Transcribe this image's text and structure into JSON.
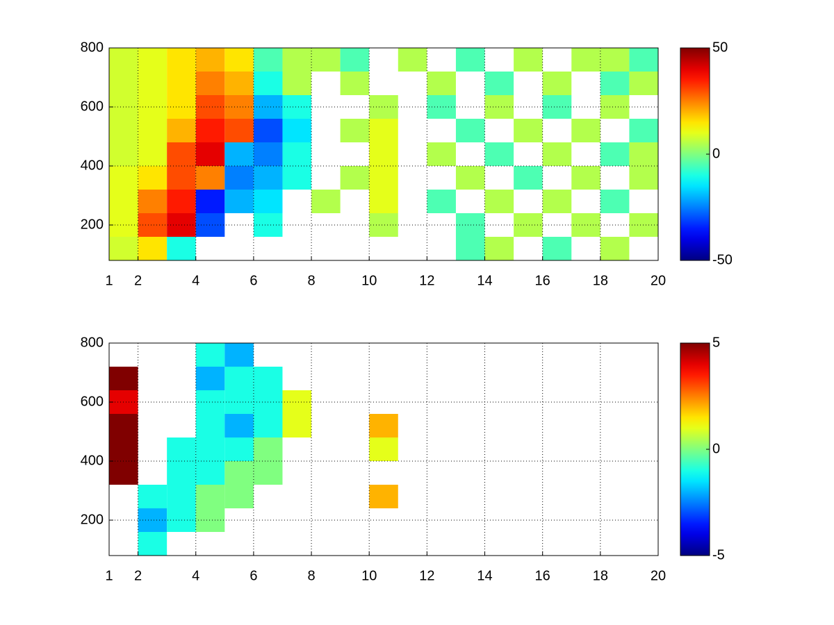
{
  "chart_data": [
    {
      "type": "heatmap",
      "colormap": "jet",
      "grid": true,
      "xbins": [
        1,
        2,
        3,
        4,
        5,
        6,
        7,
        8,
        9,
        10,
        11,
        12,
        13,
        14,
        15,
        16,
        17,
        18,
        19,
        20
      ],
      "ybins": [
        80,
        160,
        240,
        320,
        400,
        480,
        560,
        640,
        720,
        800
      ],
      "values": [
        [
          8,
          15,
          -10,
          null,
          null,
          null,
          null,
          null,
          null,
          null,
          null,
          null,
          -5,
          5,
          null,
          -5,
          null,
          5,
          null
        ],
        [
          10,
          30,
          40,
          -30,
          null,
          -10,
          null,
          null,
          null,
          5,
          null,
          null,
          -5,
          null,
          5,
          null,
          5,
          null,
          5
        ],
        [
          10,
          25,
          35,
          -35,
          -20,
          -15,
          null,
          5,
          null,
          10,
          null,
          -5,
          null,
          5,
          null,
          5,
          null,
          -5,
          null
        ],
        [
          10,
          15,
          30,
          25,
          -25,
          -20,
          -10,
          null,
          5,
          10,
          null,
          null,
          5,
          null,
          -5,
          null,
          5,
          null,
          5
        ],
        [
          8,
          10,
          30,
          40,
          -20,
          -25,
          -10,
          null,
          null,
          10,
          null,
          5,
          null,
          -5,
          null,
          5,
          null,
          -5,
          5
        ],
        [
          8,
          10,
          20,
          35,
          30,
          -30,
          -15,
          null,
          5,
          10,
          null,
          null,
          -5,
          null,
          5,
          null,
          5,
          null,
          -5
        ],
        [
          8,
          10,
          15,
          30,
          25,
          -20,
          -10,
          null,
          null,
          5,
          null,
          -5,
          null,
          5,
          null,
          -5,
          null,
          5,
          null
        ],
        [
          8,
          10,
          15,
          25,
          20,
          -10,
          5,
          null,
          5,
          null,
          null,
          5,
          null,
          -5,
          null,
          5,
          null,
          -5,
          5
        ],
        [
          8,
          10,
          15,
          20,
          15,
          -5,
          5,
          5,
          -5,
          null,
          5,
          null,
          -5,
          null,
          5,
          null,
          5,
          5,
          -5
        ]
      ],
      "xlim": [
        1,
        20
      ],
      "xticks": [
        1,
        2,
        4,
        6,
        8,
        10,
        12,
        14,
        16,
        18,
        20
      ],
      "ylim": [
        80,
        800
      ],
      "yticks": [
        200,
        400,
        600,
        800
      ],
      "zlim": [
        -50,
        50
      ],
      "zticks": [
        -50,
        0,
        50
      ]
    },
    {
      "type": "heatmap",
      "colormap": "jet",
      "grid": true,
      "xbins": [
        1,
        2,
        3,
        4,
        5,
        6,
        7,
        8,
        9,
        10,
        11,
        12,
        13,
        14,
        15,
        16,
        17,
        18,
        19,
        20
      ],
      "ybins": [
        80,
        160,
        240,
        320,
        400,
        480,
        560,
        640,
        720,
        800
      ],
      "values": [
        [
          null,
          -1,
          null,
          null,
          null,
          null,
          null,
          null,
          null,
          null,
          null,
          null,
          null,
          null,
          null,
          null,
          null,
          null,
          null
        ],
        [
          null,
          -2,
          -1,
          0,
          null,
          null,
          null,
          null,
          null,
          null,
          null,
          null,
          null,
          null,
          null,
          null,
          null,
          null,
          null
        ],
        [
          null,
          -1,
          -1,
          0,
          0,
          null,
          null,
          null,
          null,
          2,
          null,
          null,
          null,
          null,
          null,
          null,
          null,
          null,
          null
        ],
        [
          5,
          null,
          -1,
          -1,
          0,
          0,
          null,
          null,
          null,
          null,
          null,
          null,
          null,
          null,
          null,
          null,
          null,
          null,
          null
        ],
        [
          5,
          null,
          -1,
          -1,
          -1,
          0,
          null,
          null,
          null,
          1,
          null,
          null,
          null,
          null,
          null,
          null,
          null,
          null,
          null
        ],
        [
          5,
          null,
          null,
          -1,
          -2,
          -1,
          1,
          null,
          null,
          2,
          null,
          null,
          null,
          null,
          null,
          null,
          null,
          null,
          null
        ],
        [
          4,
          null,
          null,
          -1,
          -1,
          -1,
          1,
          null,
          null,
          null,
          null,
          null,
          null,
          null,
          null,
          null,
          null,
          null,
          null
        ],
        [
          5,
          null,
          null,
          -2,
          -1,
          -1,
          null,
          null,
          null,
          null,
          null,
          null,
          null,
          null,
          null,
          null,
          null,
          null,
          null
        ],
        [
          null,
          null,
          null,
          -1,
          -2,
          null,
          null,
          null,
          null,
          null,
          null,
          null,
          null,
          null,
          null,
          null,
          null,
          null,
          null
        ]
      ],
      "xlim": [
        1,
        20
      ],
      "xticks": [
        1,
        2,
        4,
        6,
        8,
        10,
        12,
        14,
        16,
        18,
        20
      ],
      "ylim": [
        80,
        800
      ],
      "yticks": [
        200,
        400,
        600,
        800
      ],
      "zlim": [
        -5,
        5
      ],
      "zticks": [
        -5,
        0,
        5
      ]
    }
  ]
}
